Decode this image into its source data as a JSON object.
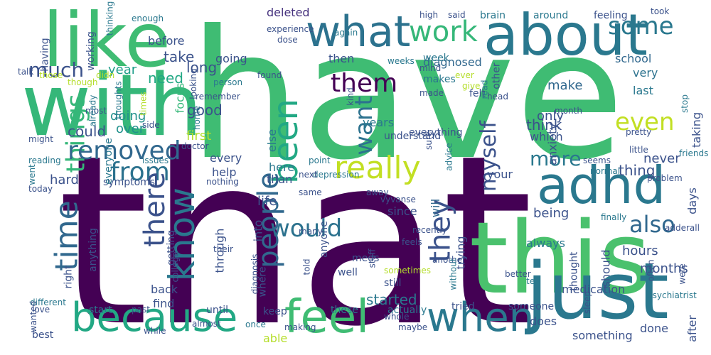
{
  "words": [
    {
      "text": "have",
      "color": "#3fbc73"
    },
    {
      "text": "that",
      "color": "#440154"
    },
    {
      "text": "this",
      "color": "#4ac16d"
    },
    {
      "text": "just",
      "color": "#2a788e"
    },
    {
      "text": "with",
      "color": "#35b779"
    },
    {
      "text": "like",
      "color": "#3fbc73"
    },
    {
      "text": "about",
      "color": "#2a788e"
    },
    {
      "text": "what",
      "color": "#2c728e"
    },
    {
      "text": "because",
      "color": "#22a884"
    },
    {
      "text": "feel",
      "color": "#3fbc73"
    },
    {
      "text": "when",
      "color": "#2a788e"
    },
    {
      "text": "adhd",
      "color": "#2a788e"
    },
    {
      "text": "know",
      "color": "#2a788e"
    },
    {
      "text": "time",
      "color": "#31688e"
    },
    {
      "text": "been",
      "color": "#22a884"
    },
    {
      "text": "things",
      "color": "#35b779"
    },
    {
      "text": "really",
      "color": "#c2df23"
    },
    {
      "text": "work",
      "color": "#35b779"
    },
    {
      "text": "removed",
      "color": "#31688e"
    },
    {
      "text": "much",
      "color": "#3b528b"
    },
    {
      "text": "from",
      "color": "#2c728e"
    },
    {
      "text": "would",
      "color": "#2c728e"
    },
    {
      "text": "some",
      "color": "#2a788e"
    },
    {
      "text": "even",
      "color": "#c2df23"
    },
    {
      "text": "more",
      "color": "#2a788e"
    },
    {
      "text": "also",
      "color": "#31688e"
    },
    {
      "text": "them",
      "color": "#440154"
    },
    {
      "text": "people",
      "color": "#31688e"
    },
    {
      "text": "they",
      "color": "#3b528b"
    },
    {
      "text": "there",
      "color": "#3b528b"
    },
    {
      "text": "myself",
      "color": "#3b528b"
    },
    {
      "text": "want",
      "color": "#2c728e"
    },
    {
      "text": "need",
      "color": "#22a884"
    },
    {
      "text": "good",
      "color": "#3b528b"
    },
    {
      "text": "deleted",
      "color": "#46327e"
    },
    {
      "text": "going",
      "color": "#3b528b"
    },
    {
      "text": "diagnosed",
      "color": "#31688e"
    },
    {
      "text": "school",
      "color": "#31688e"
    },
    {
      "text": "before",
      "color": "#3b528b"
    },
    {
      "text": "take",
      "color": "#3b528b"
    },
    {
      "text": "long",
      "color": "#3b528b"
    },
    {
      "text": "year",
      "color": "#1f9e89"
    },
    {
      "text": "then",
      "color": "#3b528b"
    },
    {
      "text": "very",
      "color": "#2c728e"
    },
    {
      "text": "last",
      "color": "#2a788e"
    },
    {
      "text": "make",
      "color": "#31688e"
    },
    {
      "text": "anxiety",
      "color": "#3b528b"
    },
    {
      "text": "doing",
      "color": "#21918c"
    },
    {
      "text": "focus",
      "color": "#35b779"
    },
    {
      "text": "could",
      "color": "#3b528b"
    },
    {
      "text": "over",
      "color": "#21918c"
    },
    {
      "text": "first",
      "color": "#b5de2b"
    },
    {
      "text": "every",
      "color": "#3b528b"
    },
    {
      "text": "help",
      "color": "#3b528b"
    },
    {
      "text": "hard",
      "color": "#3b528b"
    },
    {
      "text": "here",
      "color": "#2a788e"
    },
    {
      "text": "than",
      "color": "#3b528b"
    },
    {
      "text": "think",
      "color": "#3b528b"
    },
    {
      "text": "which",
      "color": "#3b528b"
    },
    {
      "text": "only",
      "color": "#3b528b"
    },
    {
      "text": "years",
      "color": "#2a788e"
    },
    {
      "text": "else",
      "color": "#2a788e"
    },
    {
      "text": "taking",
      "color": "#3b528b"
    },
    {
      "text": "never",
      "color": "#3b528b"
    },
    {
      "text": "thing",
      "color": "#3b528b"
    },
    {
      "text": "your",
      "color": "#3b528b"
    },
    {
      "text": "life",
      "color": "#3b528b"
    },
    {
      "text": "since",
      "color": "#3b528b"
    },
    {
      "text": "will",
      "color": "#31688e"
    },
    {
      "text": "being",
      "color": "#3b528b"
    },
    {
      "text": "always",
      "color": "#2a788e"
    },
    {
      "text": "days",
      "color": "#3b528b"
    },
    {
      "text": "hours",
      "color": "#3b528b"
    },
    {
      "text": "months",
      "color": "#3b528b"
    },
    {
      "text": "medication",
      "color": "#3b528b"
    },
    {
      "text": "should",
      "color": "#3b528b"
    },
    {
      "text": "after",
      "color": "#3b528b"
    },
    {
      "text": "does",
      "color": "#3b528b"
    },
    {
      "text": "something",
      "color": "#3b528b"
    },
    {
      "text": "done",
      "color": "#3b528b"
    },
    {
      "text": "still",
      "color": "#3b528b"
    },
    {
      "text": "started",
      "color": "#2a788e"
    },
    {
      "text": "trying",
      "color": "#3b528b"
    },
    {
      "text": "meds",
      "color": "#3b528b"
    },
    {
      "text": "well",
      "color": "#3b528b"
    },
    {
      "text": "anyone",
      "color": "#3b528b"
    },
    {
      "text": "into",
      "color": "#3b528b"
    },
    {
      "text": "where",
      "color": "#3b528b"
    },
    {
      "text": "through",
      "color": "#3b528b"
    },
    {
      "text": "getting",
      "color": "#3b528b"
    },
    {
      "text": "anything",
      "color": "#3b528b"
    },
    {
      "text": "right",
      "color": "#3b528b"
    },
    {
      "text": "back",
      "color": "#3b528b"
    },
    {
      "text": "find",
      "color": "#3b528b"
    },
    {
      "text": "until",
      "color": "#3b528b"
    },
    {
      "text": "keep",
      "color": "#3b528b"
    },
    {
      "text": "able",
      "color": "#b5de2b"
    },
    {
      "text": "start",
      "color": "#2a788e"
    },
    {
      "text": "these",
      "color": "#2a788e"
    },
    {
      "text": "actually",
      "color": "#2a788e"
    },
    {
      "text": "tried",
      "color": "#3b528b"
    },
    {
      "text": "someone",
      "color": "#3b528b"
    },
    {
      "text": "thought",
      "color": "#3b528b"
    },
    {
      "text": "symptoms",
      "color": "#3b528b"
    },
    {
      "text": "having",
      "color": "#3b528b"
    },
    {
      "text": "working",
      "color": "#3b528b"
    },
    {
      "text": "thinking",
      "color": "#2a788e"
    },
    {
      "text": "enough",
      "color": "#2a788e"
    },
    {
      "text": "experience",
      "color": "#3b528b"
    },
    {
      "text": "dose",
      "color": "#3b528b"
    },
    {
      "text": "again",
      "color": "#2a788e"
    },
    {
      "text": "high",
      "color": "#3b528b"
    },
    {
      "text": "said",
      "color": "#3b528b"
    },
    {
      "text": "brain",
      "color": "#2a788e"
    },
    {
      "text": "around",
      "color": "#2a788e"
    },
    {
      "text": "feeling",
      "color": "#3b528b"
    },
    {
      "text": "took",
      "color": "#3b528b"
    },
    {
      "text": "week",
      "color": "#2a788e"
    },
    {
      "text": "mind",
      "color": "#3b528b"
    },
    {
      "text": "weeks",
      "color": "#2a788e"
    },
    {
      "text": "other",
      "color": "#3b528b"
    },
    {
      "text": "makes",
      "color": "#2a788e"
    },
    {
      "text": "made",
      "color": "#3b528b"
    },
    {
      "text": "ever",
      "color": "#b5de2b"
    },
    {
      "text": "give",
      "color": "#b5de2b"
    },
    {
      "text": "read",
      "color": "#2a788e"
    },
    {
      "text": "felt",
      "color": "#3b528b"
    },
    {
      "text": "head",
      "color": "#3b528b"
    },
    {
      "text": "most",
      "color": "#3b528b"
    },
    {
      "text": "month",
      "color": "#3b528b"
    },
    {
      "text": "stop",
      "color": "#2a788e"
    },
    {
      "text": "everything",
      "color": "#3b528b"
    },
    {
      "text": "sure",
      "color": "#3b528b"
    },
    {
      "text": "understand",
      "color": "#3b528b"
    },
    {
      "text": "talk",
      "color": "#3b528b"
    },
    {
      "text": "those",
      "color": "#b5de2b"
    },
    {
      "text": "though",
      "color": "#b5de2b"
    },
    {
      "text": "didn",
      "color": "#b5de2b"
    },
    {
      "text": "thoughts",
      "color": "#2a788e"
    },
    {
      "text": "looking",
      "color": "#3b528b"
    },
    {
      "text": "found",
      "color": "#3b528b"
    },
    {
      "text": "person",
      "color": "#2a788e"
    },
    {
      "text": "kind",
      "color": "#3b528b"
    },
    {
      "text": "remember",
      "color": "#3b528b"
    },
    {
      "text": "already",
      "color": "#2a788e"
    },
    {
      "text": "times",
      "color": "#b5de2b"
    },
    {
      "text": "home",
      "color": "#2a788e"
    },
    {
      "text": "side",
      "color": "#3b528b"
    },
    {
      "text": "might",
      "color": "#3b528b"
    },
    {
      "text": "doctor",
      "color": "#3b528b"
    },
    {
      "text": "everyone",
      "color": "#2a788e"
    },
    {
      "text": "issues",
      "color": "#2a788e"
    },
    {
      "text": "reading",
      "color": "#2a788e"
    },
    {
      "text": "went",
      "color": "#2a788e"
    },
    {
      "text": "point",
      "color": "#2a788e"
    },
    {
      "text": "depression",
      "color": "#2a788e"
    },
    {
      "text": "advice",
      "color": "#2a788e"
    },
    {
      "text": "seems",
      "color": "#3b528b"
    },
    {
      "text": "pretty",
      "color": "#3b528b"
    },
    {
      "text": "little",
      "color": "#3b528b"
    },
    {
      "text": "friends",
      "color": "#2a788e"
    },
    {
      "text": "normal",
      "color": "#2a788e"
    },
    {
      "text": "problem",
      "color": "#3b528b"
    },
    {
      "text": "nothing",
      "color": "#3b528b"
    },
    {
      "text": "next",
      "color": "#3b528b"
    },
    {
      "text": "same",
      "color": "#3b528b"
    },
    {
      "text": "away",
      "color": "#3b528b"
    },
    {
      "text": "vyvanse",
      "color": "#3b528b"
    },
    {
      "text": "today",
      "color": "#3b528b"
    },
    {
      "text": "many",
      "color": "#3b528b"
    },
    {
      "text": "feels",
      "color": "#3b528b"
    },
    {
      "text": "their",
      "color": "#3b528b"
    },
    {
      "text": "recently",
      "color": "#3b528b"
    },
    {
      "text": "stuff",
      "color": "#3b528b"
    },
    {
      "text": "another",
      "color": "#3b528b"
    },
    {
      "text": "finally",
      "color": "#2a788e"
    },
    {
      "text": "adderall",
      "color": "#3b528b"
    },
    {
      "text": "college",
      "color": "#3b528b"
    },
    {
      "text": "diagnosis",
      "color": "#3b528b"
    },
    {
      "text": "told",
      "color": "#3b528b"
    },
    {
      "text": "sometimes",
      "color": "#b5de2b"
    },
    {
      "text": "without",
      "color": "#2a788e"
    },
    {
      "text": "often",
      "color": "#3b528b"
    },
    {
      "text": "psychiatrist",
      "color": "#2a788e"
    },
    {
      "text": "were",
      "color": "#3b528b"
    },
    {
      "text": "better",
      "color": "#3b528b"
    },
    {
      "text": "tell",
      "color": "#2a788e"
    },
    {
      "text": "sleep",
      "color": "#3b528b"
    },
    {
      "text": "different",
      "color": "#2a788e"
    },
    {
      "text": "wanted",
      "color": "#3b528b"
    },
    {
      "text": "love",
      "color": "#3b528b"
    },
    {
      "text": "past",
      "color": "#3b528b"
    },
    {
      "text": "almost",
      "color": "#3b528b"
    },
    {
      "text": "making",
      "color": "#3b528b"
    },
    {
      "text": "once",
      "color": "#2a788e"
    },
    {
      "text": "while",
      "color": "#3b528b"
    },
    {
      "text": "best",
      "color": "#3b528b"
    },
    {
      "text": "whole",
      "color": "#3b528b"
    },
    {
      "text": "maybe",
      "color": "#3b528b"
    }
  ]
}
